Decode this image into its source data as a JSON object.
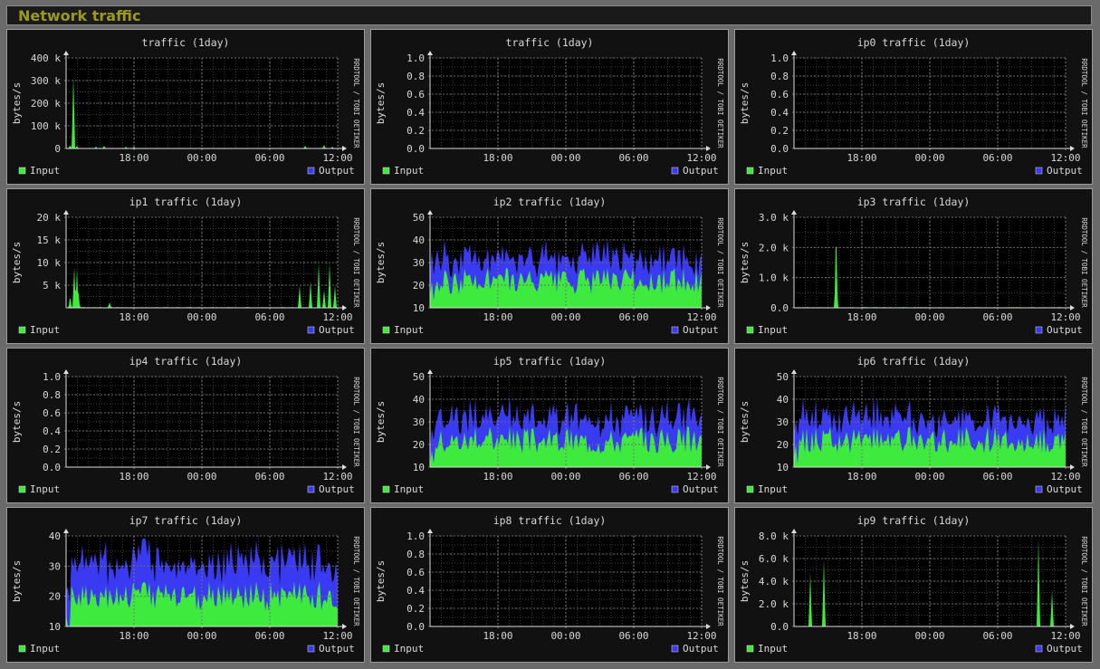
{
  "page": {
    "title": "Network traffic"
  },
  "colors": {
    "input": "#3dea3d",
    "output": "#3a3af2",
    "panel_bg": "#111111",
    "canvas_bg": "#000000",
    "grid": "#5a5a5a",
    "axis": "#dddddd",
    "text": "#d8d8d8"
  },
  "legend": {
    "input": "Input",
    "output": "Output"
  },
  "watermark": "RRDTOOL / TOBI OETIKER",
  "chart_data": [
    {
      "type": "area",
      "title": "traffic  (1day)",
      "ylabel": "bytes/s",
      "ylim": [
        0,
        400000
      ],
      "yticks": [
        {
          "v": 0,
          "label": "0"
        },
        {
          "v": 100000,
          "label": "100 k"
        },
        {
          "v": 200000,
          "label": "200 k"
        },
        {
          "v": 300000,
          "label": "300 k"
        },
        {
          "v": 400000,
          "label": "400 k"
        }
      ],
      "xticks": [
        "18:00",
        "00:00",
        "06:00",
        "12:00"
      ],
      "series": [
        {
          "name": "Input",
          "role": "input",
          "spikes": [
            [
              0.015,
              0.04
            ],
            [
              0.027,
              0.85
            ],
            [
              0.04,
              0.03
            ],
            [
              0.11,
              0.02
            ],
            [
              0.14,
              0.03
            ],
            [
              0.22,
              0.02
            ],
            [
              0.25,
              0.02
            ],
            [
              0.88,
              0.03
            ],
            [
              0.95,
              0.04
            ],
            [
              0.98,
              0.02
            ]
          ],
          "base": 0.003
        }
      ]
    },
    {
      "type": "area",
      "title": "traffic  (1day)",
      "ylabel": "bytes/s",
      "ylim": [
        0,
        1
      ],
      "yticks": [
        {
          "v": 0,
          "label": "0.0"
        },
        {
          "v": 0.2,
          "label": "0.2"
        },
        {
          "v": 0.4,
          "label": "0.4"
        },
        {
          "v": 0.6,
          "label": "0.6"
        },
        {
          "v": 0.8,
          "label": "0.8"
        },
        {
          "v": 1,
          "label": "1.0"
        }
      ],
      "xticks": [
        "18:00",
        "00:00",
        "06:00",
        "12:00"
      ],
      "series": []
    },
    {
      "type": "area",
      "title": "ip0 traffic  (1day)",
      "ylabel": "bytes/s",
      "ylim": [
        0,
        1
      ],
      "yticks": [
        {
          "v": 0,
          "label": "0.0"
        },
        {
          "v": 0.2,
          "label": "0.2"
        },
        {
          "v": 0.4,
          "label": "0.4"
        },
        {
          "v": 0.6,
          "label": "0.6"
        },
        {
          "v": 0.8,
          "label": "0.8"
        },
        {
          "v": 1,
          "label": "1.0"
        }
      ],
      "xticks": [
        "18:00",
        "00:00",
        "06:00",
        "12:00"
      ],
      "series": []
    },
    {
      "type": "area",
      "title": "ip1 traffic  (1day)",
      "ylabel": "bytes/s",
      "ylim": [
        0,
        20000
      ],
      "yticks": [
        {
          "v": 5000,
          "label": "5 k"
        },
        {
          "v": 10000,
          "label": "10 k"
        },
        {
          "v": 15000,
          "label": "15 k"
        },
        {
          "v": 20000,
          "label": "20 k"
        }
      ],
      "xticks": [
        "18:00",
        "00:00",
        "06:00",
        "12:00"
      ],
      "series": [
        {
          "name": "Input",
          "role": "input",
          "spikes": [
            [
              0.015,
              0.14
            ],
            [
              0.03,
              0.45
            ],
            [
              0.04,
              0.42
            ],
            [
              0.045,
              0.2
            ],
            [
              0.16,
              0.06
            ],
            [
              0.86,
              0.25
            ],
            [
              0.9,
              0.3
            ],
            [
              0.93,
              0.5
            ],
            [
              0.95,
              0.2
            ],
            [
              0.97,
              0.5
            ],
            [
              0.99,
              0.25
            ]
          ],
          "base": 0.005
        }
      ]
    },
    {
      "type": "area",
      "title": "ip2 traffic  (1day)",
      "ylabel": "bytes/s",
      "ylim": [
        10,
        50
      ],
      "yticks": [
        {
          "v": 10,
          "label": "10"
        },
        {
          "v": 20,
          "label": "20"
        },
        {
          "v": 30,
          "label": "30"
        },
        {
          "v": 40,
          "label": "40"
        },
        {
          "v": 50,
          "label": "50"
        }
      ],
      "xticks": [
        "18:00",
        "00:00",
        "06:00",
        "12:00"
      ],
      "series": [
        {
          "name": "Input",
          "role": "input",
          "mean": 22,
          "noise": 6
        },
        {
          "name": "Output",
          "role": "output",
          "mean": 10,
          "noise": 4
        }
      ]
    },
    {
      "type": "area",
      "title": "ip3 traffic  (1day)",
      "ylabel": "bytes/s",
      "ylim": [
        0,
        3000
      ],
      "yticks": [
        {
          "v": 0,
          "label": "0.0"
        },
        {
          "v": 1000,
          "label": "1.0 k"
        },
        {
          "v": 2000,
          "label": "2.0 k"
        },
        {
          "v": 3000,
          "label": "3.0 k"
        }
      ],
      "xticks": [
        "18:00",
        "00:00",
        "06:00",
        "12:00"
      ],
      "series": [
        {
          "name": "Input",
          "role": "input",
          "spikes": [
            [
              0.155,
              0.93
            ]
          ],
          "base": 0.005
        }
      ]
    },
    {
      "type": "area",
      "title": "ip4 traffic  (1day)",
      "ylabel": "bytes/s",
      "ylim": [
        0,
        1
      ],
      "yticks": [
        {
          "v": 0,
          "label": "0.0"
        },
        {
          "v": 0.2,
          "label": "0.2"
        },
        {
          "v": 0.4,
          "label": "0.4"
        },
        {
          "v": 0.6,
          "label": "0.6"
        },
        {
          "v": 0.8,
          "label": "0.8"
        },
        {
          "v": 1,
          "label": "1.0"
        }
      ],
      "xticks": [
        "18:00",
        "00:00",
        "06:00",
        "12:00"
      ],
      "series": []
    },
    {
      "type": "area",
      "title": "ip5 traffic  (1day)",
      "ylabel": "bytes/s",
      "ylim": [
        10,
        50
      ],
      "yticks": [
        {
          "v": 10,
          "label": "10"
        },
        {
          "v": 20,
          "label": "20"
        },
        {
          "v": 30,
          "label": "30"
        },
        {
          "v": 40,
          "label": "40"
        },
        {
          "v": 50,
          "label": "50"
        }
      ],
      "xticks": [
        "18:00",
        "00:00",
        "06:00",
        "12:00"
      ],
      "series": [
        {
          "name": "Input",
          "role": "input",
          "mean": 22,
          "noise": 6
        },
        {
          "name": "Output",
          "role": "output",
          "mean": 10,
          "noise": 4
        }
      ]
    },
    {
      "type": "area",
      "title": "ip6 traffic  (1day)",
      "ylabel": "bytes/s",
      "ylim": [
        10,
        50
      ],
      "yticks": [
        {
          "v": 10,
          "label": "10"
        },
        {
          "v": 20,
          "label": "20"
        },
        {
          "v": 30,
          "label": "30"
        },
        {
          "v": 40,
          "label": "40"
        },
        {
          "v": 50,
          "label": "50"
        }
      ],
      "xticks": [
        "18:00",
        "00:00",
        "06:00",
        "12:00"
      ],
      "series": [
        {
          "name": "Input",
          "role": "input",
          "mean": 22,
          "noise": 6
        },
        {
          "name": "Output",
          "role": "output",
          "mean": 10,
          "noise": 4
        }
      ]
    },
    {
      "type": "area",
      "title": "ip7 traffic  (1day)",
      "ylabel": "bytes/s",
      "ylim": [
        10,
        40
      ],
      "yticks": [
        {
          "v": 10,
          "label": "10"
        },
        {
          "v": 20,
          "label": "20"
        },
        {
          "v": 30,
          "label": "30"
        },
        {
          "v": 40,
          "label": "40"
        }
      ],
      "xticks": [
        "18:00",
        "00:00",
        "06:00",
        "12:00"
      ],
      "series": [
        {
          "name": "Input",
          "role": "input",
          "mean": 20,
          "noise": 5
        },
        {
          "name": "Output",
          "role": "output",
          "mean": 11,
          "noise": 4
        }
      ]
    },
    {
      "type": "area",
      "title": "ip8 traffic  (1day)",
      "ylabel": "bytes/s",
      "ylim": [
        0,
        1
      ],
      "yticks": [
        {
          "v": 0,
          "label": "0.0"
        },
        {
          "v": 0.2,
          "label": "0.2"
        },
        {
          "v": 0.4,
          "label": "0.4"
        },
        {
          "v": 0.6,
          "label": "0.6"
        },
        {
          "v": 0.8,
          "label": "0.8"
        },
        {
          "v": 1,
          "label": "1.0"
        }
      ],
      "xticks": [
        "18:00",
        "00:00",
        "06:00",
        "12:00"
      ],
      "series": []
    },
    {
      "type": "area",
      "title": "ip9 traffic  (1day)",
      "ylabel": "bytes/s",
      "ylim": [
        0,
        8000
      ],
      "yticks": [
        {
          "v": 0,
          "label": "0.0"
        },
        {
          "v": 2000,
          "label": "2.0 k"
        },
        {
          "v": 4000,
          "label": "4.0 k"
        },
        {
          "v": 6000,
          "label": "6.0 k"
        },
        {
          "v": 8000,
          "label": "8.0 k"
        }
      ],
      "xticks": [
        "18:00",
        "00:00",
        "06:00",
        "12:00"
      ],
      "series": [
        {
          "name": "Input",
          "role": "input",
          "spikes": [
            [
              0.06,
              0.6
            ],
            [
              0.11,
              0.75
            ],
            [
              0.9,
              0.98
            ],
            [
              0.95,
              0.4
            ]
          ],
          "base": 0.003
        }
      ]
    }
  ]
}
